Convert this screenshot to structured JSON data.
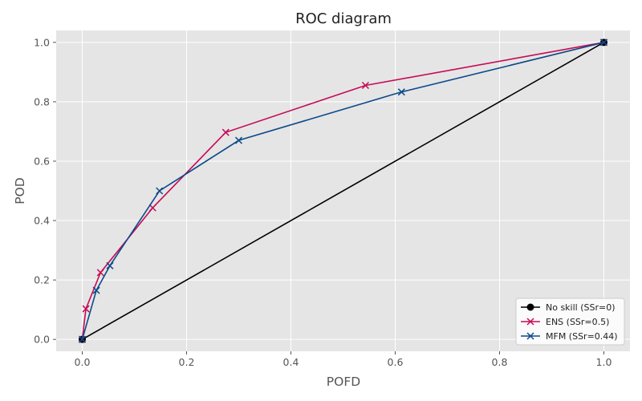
{
  "chart_data": {
    "type": "line",
    "title": "ROC diagram",
    "xlabel": "POFD",
    "ylabel": "POD",
    "xlim": [
      -0.05,
      1.05
    ],
    "ylim": [
      -0.04,
      1.04
    ],
    "xticks": [
      0.0,
      0.2,
      0.4,
      0.6,
      0.8,
      1.0
    ],
    "yticks": [
      0.0,
      0.2,
      0.4,
      0.6,
      0.8,
      1.0
    ],
    "tick_labels": [
      "0.0",
      "0.2",
      "0.4",
      "0.6",
      "0.8",
      "1.0"
    ],
    "grid": true,
    "background": "#e5e5e5",
    "legend_position": "lower-right",
    "series": [
      {
        "name": "No skill (SSr=0)",
        "color": "#000000",
        "marker": "circle",
        "x": [
          0.0,
          1.0
        ],
        "y": [
          0.0,
          1.0
        ]
      },
      {
        "name": "ENS (SSr=0.5)",
        "color": "#c70a55",
        "marker": "x",
        "x": [
          0.0,
          0.007,
          0.035,
          0.135,
          0.275,
          0.543,
          1.0
        ],
        "y": [
          0.0,
          0.103,
          0.225,
          0.443,
          0.697,
          0.855,
          1.0
        ]
      },
      {
        "name": "MFM (SSr=0.44)",
        "color": "#0c4a8a",
        "marker": "x",
        "x": [
          0.0,
          0.027,
          0.053,
          0.148,
          0.3,
          0.612,
          1.0
        ],
        "y": [
          0.0,
          0.165,
          0.248,
          0.5,
          0.67,
          0.833,
          1.0
        ]
      }
    ]
  }
}
